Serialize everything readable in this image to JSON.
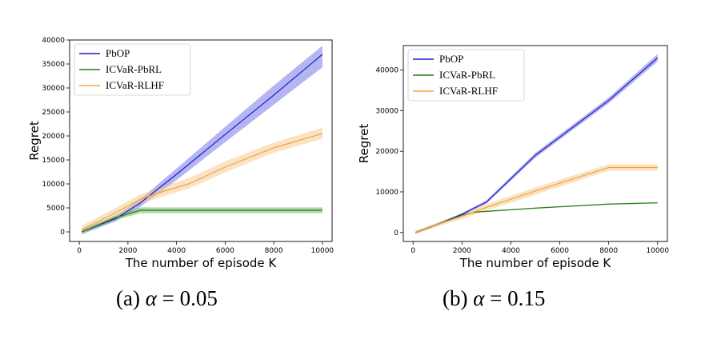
{
  "chart_data": [
    {
      "type": "line",
      "caption": {
        "letter": "(a)",
        "symbol": "α",
        "equals": "=",
        "value": "0.05"
      },
      "xlabel": "The number of episode K",
      "ylabel": "Regret",
      "xlim": [
        -400,
        10400
      ],
      "ylim": [
        -2000,
        40000
      ],
      "xticks": [
        0,
        2000,
        4000,
        6000,
        8000,
        10000
      ],
      "yticks": [
        0,
        5000,
        10000,
        15000,
        20000,
        25000,
        30000,
        35000,
        40000
      ],
      "legend_position": "top-left",
      "grid": false,
      "series": [
        {
          "name": "PbOP",
          "color": "#1f1fd0",
          "band_color": "#6b6be6",
          "x": [
            100,
            1500,
            2500,
            4000,
            6000,
            8000,
            10000
          ],
          "y": [
            0,
            2800,
            6000,
            12000,
            20300,
            28500,
            37000
          ],
          "lower": [
            -500,
            2200,
            5200,
            10800,
            18700,
            26500,
            34300
          ],
          "upper": [
            500,
            3400,
            6800,
            13200,
            21900,
            30500,
            38800
          ]
        },
        {
          "name": "ICVaR-PbRL",
          "color": "#2a7a1e",
          "band_color": "#5fb34a",
          "x": [
            100,
            1500,
            2500,
            4000,
            6000,
            8000,
            10000
          ],
          "y": [
            0,
            3000,
            4500,
            4500,
            4500,
            4500,
            4500
          ],
          "lower": [
            -400,
            2500,
            3900,
            3900,
            3900,
            3900,
            3900
          ],
          "upper": [
            400,
            3500,
            5100,
            5100,
            5100,
            5100,
            5100
          ]
        },
        {
          "name": "ICVaR-RLHF",
          "color": "#f0a53a",
          "band_color": "#f5c88a",
          "x": [
            100,
            1500,
            2500,
            3500,
            4500,
            6000,
            8000,
            10000
          ],
          "y": [
            500,
            4000,
            6800,
            8500,
            10000,
            13500,
            17500,
            20500
          ],
          "lower": [
            -300,
            3000,
            5800,
            7500,
            9000,
            12400,
            16500,
            19400
          ],
          "upper": [
            1300,
            5000,
            7800,
            9500,
            11200,
            14700,
            18600,
            21700
          ]
        }
      ]
    },
    {
      "type": "line",
      "caption": {
        "letter": "(b)",
        "symbol": "α",
        "equals": "=",
        "value": "0.15"
      },
      "xlabel": "The number of episode K",
      "ylabel": "Regret",
      "xlim": [
        -400,
        10400
      ],
      "ylim": [
        -2200,
        46000
      ],
      "xticks": [
        0,
        2000,
        4000,
        6000,
        8000,
        10000
      ],
      "yticks": [
        0,
        10000,
        20000,
        30000,
        40000
      ],
      "legend_position": "top-left",
      "grid": false,
      "series": [
        {
          "name": "PbOP",
          "color": "#1f1fd0",
          "band_color": "#6b6be6",
          "x": [
            100,
            1000,
            2000,
            3000,
            5000,
            8000,
            10000
          ],
          "y": [
            0,
            2000,
            4500,
            7500,
            19000,
            32500,
            43000
          ],
          "lower": [
            -300,
            1700,
            4200,
            7100,
            18400,
            31800,
            42100
          ],
          "upper": [
            300,
            2300,
            4800,
            7900,
            19600,
            33200,
            43900
          ]
        },
        {
          "name": "ICVaR-PbRL",
          "color": "#2a7a1e",
          "band_color": "#5fb34a",
          "x": [
            100,
            1000,
            2000,
            2500,
            3000,
            5000,
            8000,
            10000
          ],
          "y": [
            0,
            2000,
            4300,
            5000,
            5200,
            6000,
            7000,
            7300
          ],
          "lower": [
            -150,
            1850,
            4150,
            4850,
            5050,
            5850,
            6850,
            7150
          ],
          "upper": [
            150,
            2150,
            4450,
            5150,
            5350,
            6150,
            7150,
            7450
          ]
        },
        {
          "name": "ICVaR-RLHF",
          "color": "#f0a53a",
          "band_color": "#f5c88a",
          "x": [
            100,
            1000,
            2000,
            3000,
            5000,
            8000,
            10000
          ],
          "y": [
            0,
            2000,
            4000,
            6200,
            10200,
            16000,
            16000
          ],
          "lower": [
            -400,
            1500,
            3300,
            5400,
            9300,
            15200,
            15200
          ],
          "upper": [
            400,
            2500,
            4700,
            7000,
            11100,
            16800,
            16800
          ]
        }
      ]
    }
  ]
}
